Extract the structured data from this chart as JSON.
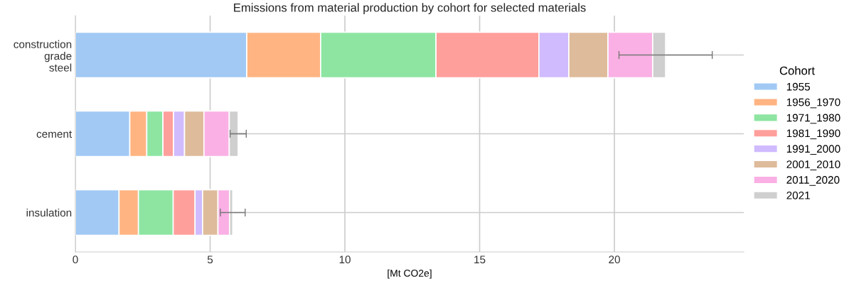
{
  "chart_data": {
    "type": "bar",
    "orientation": "horizontal",
    "stacked": true,
    "title": "Emissions from material production by cohort for selected materials",
    "xlabel": "[Mt CO2e]",
    "legend_title": "Cohort",
    "legend": "right",
    "grid": true,
    "categories": [
      "construction\ngrade\nsteel",
      "cement",
      "insulation"
    ],
    "xlim": [
      0,
      24.8
    ],
    "xticks": [
      0,
      5,
      10,
      15,
      20
    ],
    "series": [
      {
        "name": "1955",
        "color": "#a1c9f4",
        "values": [
          6.36,
          2.02,
          1.62
        ]
      },
      {
        "name": "1956_1970",
        "color": "#ffb482",
        "values": [
          2.74,
          0.63,
          0.72
        ]
      },
      {
        "name": "1971_1980",
        "color": "#8de5a1",
        "values": [
          4.28,
          0.6,
          1.29
        ]
      },
      {
        "name": "1981_1990",
        "color": "#ff9f9b",
        "values": [
          3.82,
          0.39,
          0.81
        ]
      },
      {
        "name": "1991_2000",
        "color": "#d0bbff",
        "values": [
          1.11,
          0.41,
          0.28
        ]
      },
      {
        "name": "2001_2010",
        "color": "#debb9b",
        "values": [
          1.45,
          0.72,
          0.57
        ]
      },
      {
        "name": "2011_2020",
        "color": "#fab0e4",
        "values": [
          1.66,
          0.94,
          0.43
        ]
      },
      {
        "name": "2021",
        "color": "#cfcfcf",
        "values": [
          0.48,
          0.33,
          0.12
        ],
        "errors": [
          1.73,
          0.3,
          0.46
        ]
      }
    ]
  }
}
